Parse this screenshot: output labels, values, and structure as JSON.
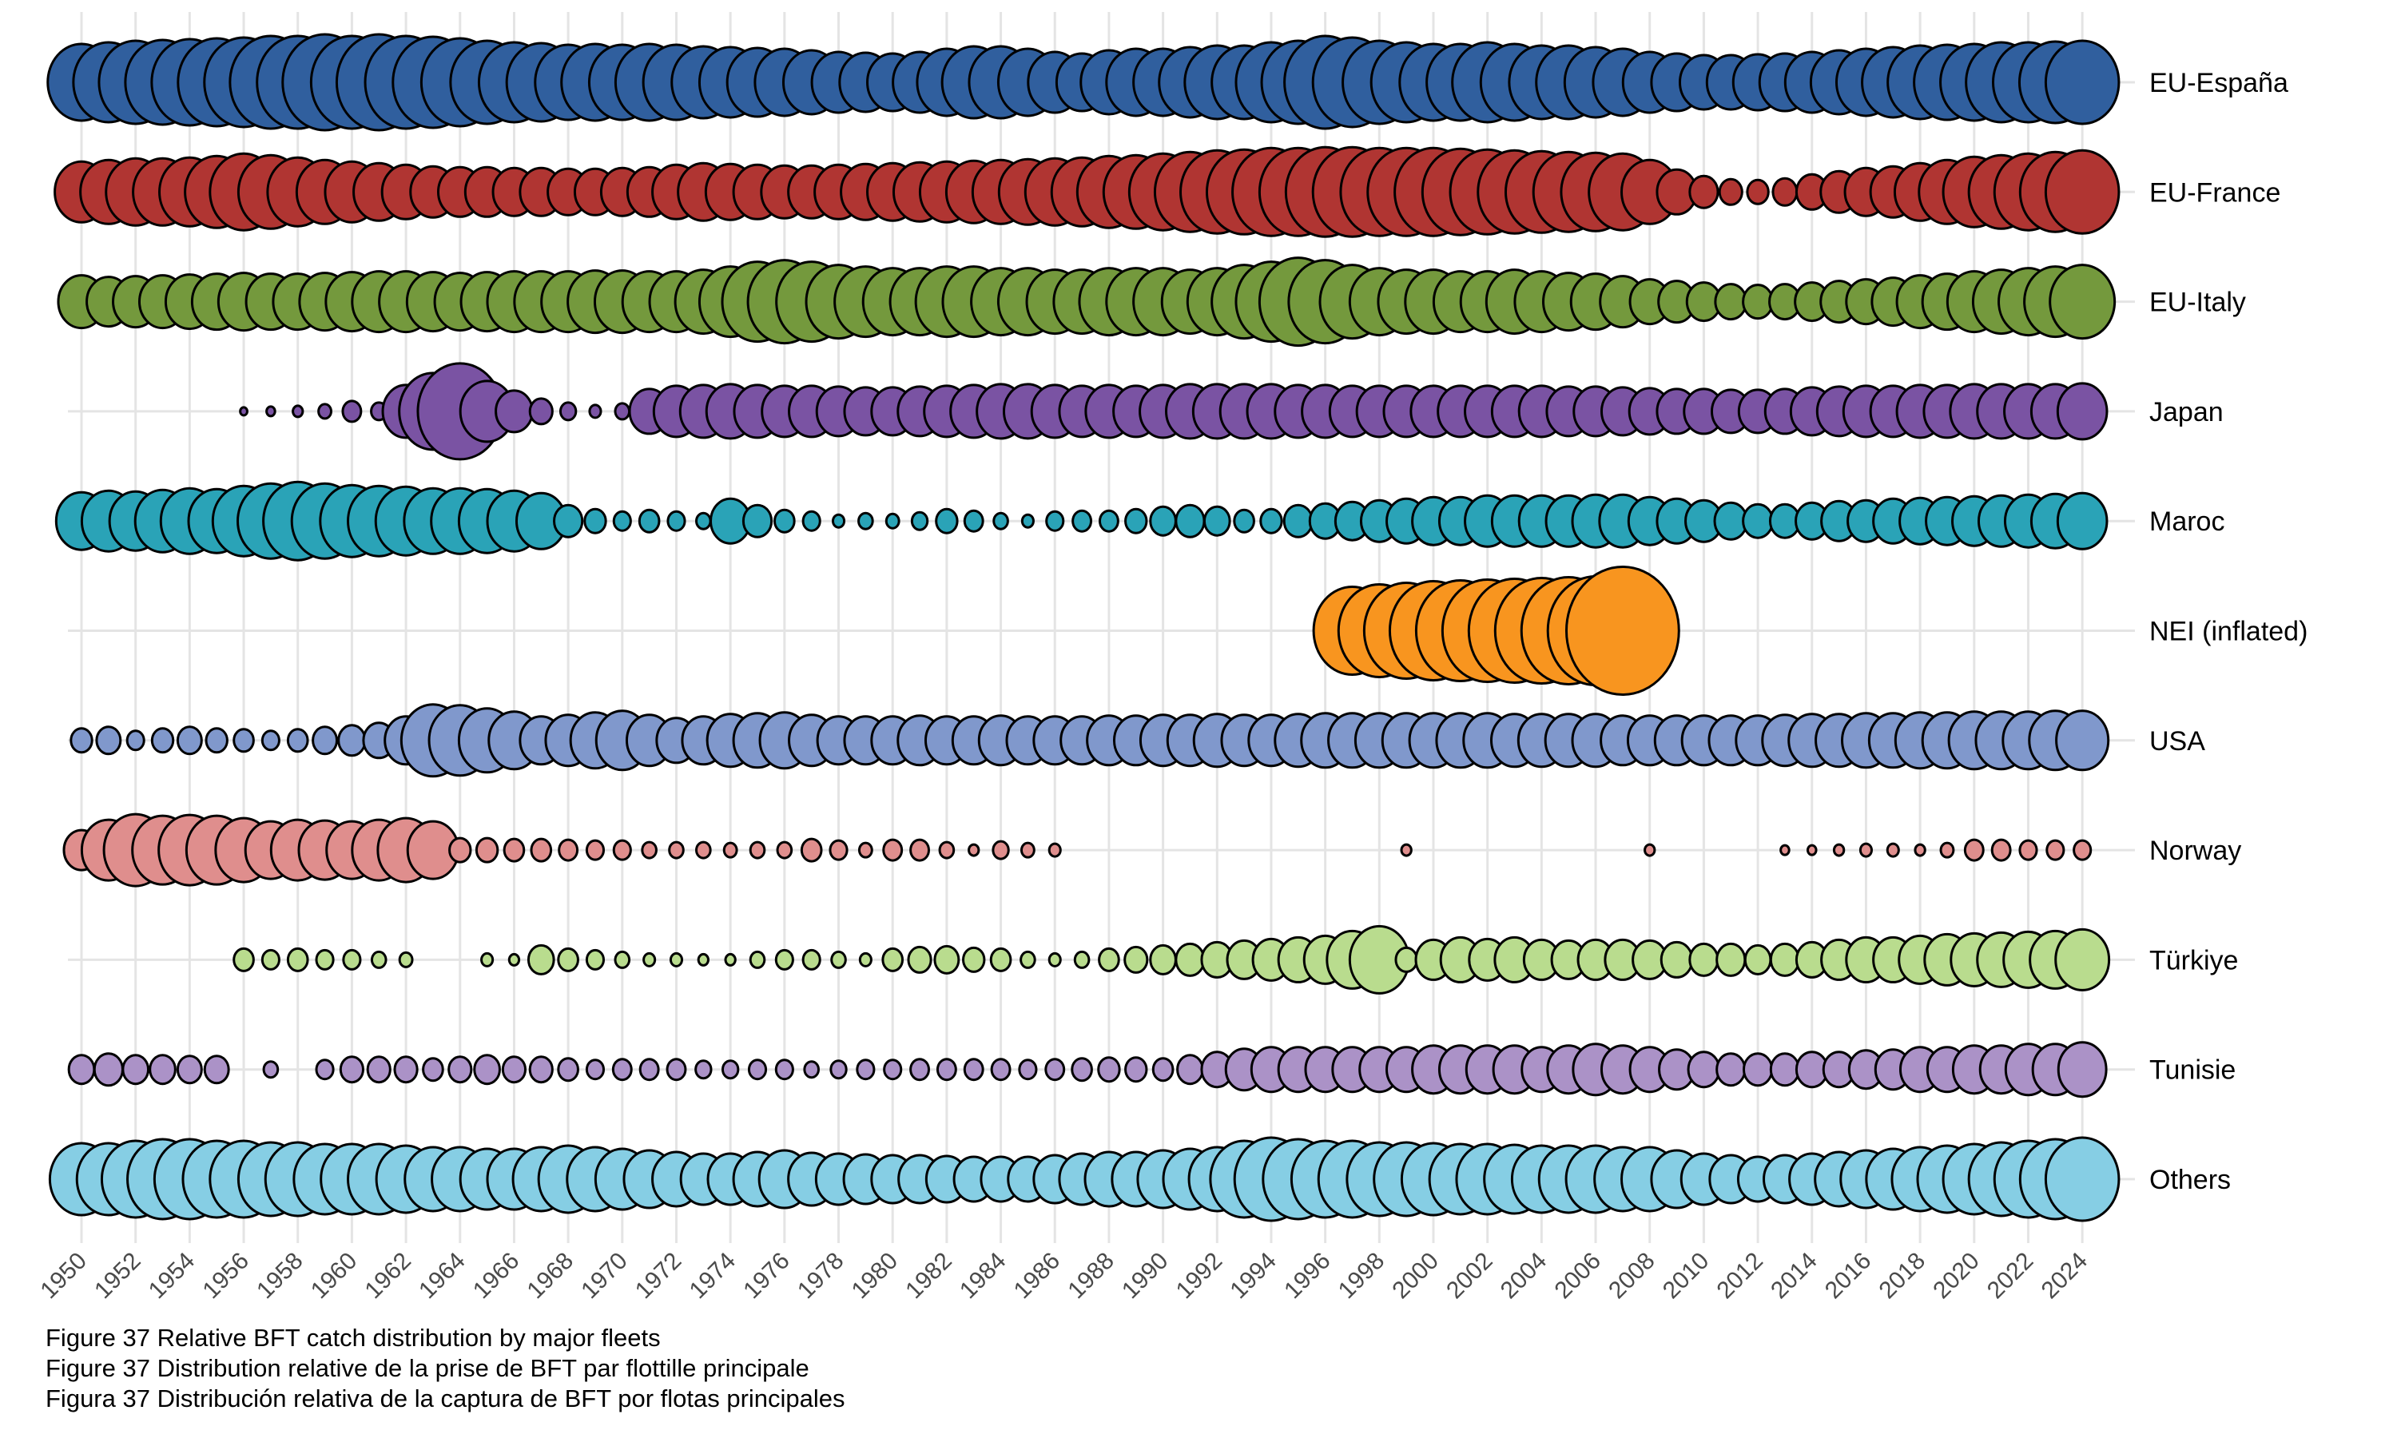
{
  "figure": {
    "captions": {
      "en": "Figure 37 Relative BFT catch distribution by major fleets",
      "fr": "Figure 37 Distribution relative de la prise de BFT par flottille principale",
      "es": "Figura 37 Distribución relativa de la captura de BFT por flotas principales"
    }
  },
  "colors": {
    "background": "#ffffff",
    "grid": "#e4e4e4",
    "bubble_stroke": "#000000",
    "tick_text": "#4a4a4a",
    "row_label_text": "#000000"
  },
  "chart_data": {
    "type": "bubble",
    "title": "Relative BFT catch distribution by major fleets",
    "xlabel": "",
    "ylabel": "",
    "grid": true,
    "legend": "none",
    "x": {
      "start": 1950,
      "end": 2024,
      "step": 1,
      "tick_step": 2,
      "ticks": [
        "1950",
        "1952",
        "1954",
        "1956",
        "1958",
        "1960",
        "1962",
        "1964",
        "1966",
        "1968",
        "1970",
        "1972",
        "1974",
        "1976",
        "1978",
        "1980",
        "1982",
        "1984",
        "1986",
        "1988",
        "1990",
        "1992",
        "1994",
        "1996",
        "1998",
        "2000",
        "2002",
        "2004",
        "2006",
        "2008",
        "2010",
        "2012",
        "2014",
        "2016",
        "2018",
        "2020",
        "2022",
        "2024"
      ]
    },
    "size_encoding": "bubble size = relative catch share per fleet and year; no size legend shown; values given as bubble radius in canvas px (3000x1800)",
    "fleets": [
      {
        "label": "EU-España",
        "color": "#305F9E",
        "radii": [
          48,
          50,
          52,
          53,
          54,
          55,
          56,
          58,
          58,
          60,
          58,
          60,
          58,
          57,
          55,
          52,
          50,
          49,
          47,
          48,
          47,
          48,
          47,
          45,
          44,
          43,
          42,
          40,
          38,
          37,
          36,
          38,
          42,
          45,
          45,
          42,
          38,
          36,
          40,
          42,
          42,
          44,
          46,
          46,
          50,
          52,
          58,
          56,
          52,
          50,
          48,
          48,
          50,
          48,
          46,
          46,
          44,
          42,
          38,
          36,
          34,
          34,
          35,
          36,
          38,
          40,
          42,
          44,
          46,
          47,
          48,
          50,
          50,
          51,
          52
        ]
      },
      {
        "label": "EU-France",
        "color": "#B03532",
        "radii": [
          38,
          40,
          42,
          42,
          43,
          45,
          48,
          46,
          43,
          40,
          38,
          36,
          34,
          32,
          31,
          31,
          30,
          30,
          29,
          29,
          30,
          31,
          34,
          36,
          35,
          34,
          33,
          33,
          34,
          35,
          36,
          37,
          38,
          39,
          40,
          41,
          42,
          43,
          45,
          46,
          48,
          50,
          52,
          53,
          55,
          55,
          56,
          56,
          55,
          55,
          55,
          54,
          53,
          52,
          51,
          50,
          49,
          48,
          40,
          28,
          20,
          16,
          15,
          17,
          22,
          26,
          30,
          32,
          36,
          40,
          44,
          46,
          48,
          50,
          52
        ]
      },
      {
        "label": "EU-Italy",
        "color": "#74993D",
        "radii": [
          33,
          31,
          32,
          33,
          34,
          35,
          36,
          35,
          35,
          36,
          37,
          38,
          38,
          37,
          36,
          37,
          38,
          38,
          38,
          39,
          39,
          38,
          38,
          40,
          44,
          50,
          52,
          50,
          46,
          44,
          42,
          42,
          44,
          44,
          42,
          42,
          40,
          40,
          42,
          42,
          42,
          40,
          42,
          46,
          50,
          55,
          52,
          46,
          42,
          40,
          40,
          38,
          38,
          40,
          38,
          36,
          35,
          32,
          28,
          26,
          24,
          22,
          21,
          22,
          24,
          26,
          28,
          30,
          33,
          35,
          38,
          40,
          42,
          44,
          46
        ]
      },
      {
        "label": "Japan",
        "color": "#7A53A3",
        "radii": [
          0,
          0,
          0,
          0,
          0,
          0,
          5,
          6,
          7,
          9,
          13,
          11,
          33,
          48,
          60,
          38,
          26,
          16,
          11,
          8,
          10,
          28,
          32,
          33,
          34,
          33,
          32,
          32,
          31,
          30,
          30,
          31,
          32,
          33,
          34,
          34,
          33,
          32,
          33,
          32,
          33,
          34,
          34,
          34,
          34,
          33,
          33,
          32,
          32,
          32,
          32,
          32,
          32,
          32,
          32,
          31,
          31,
          30,
          29,
          28,
          28,
          27,
          27,
          28,
          30,
          31,
          32,
          32,
          33,
          33,
          34,
          34,
          34,
          34,
          35
        ]
      },
      {
        "label": "Maroc",
        "color": "#2AA3B7",
        "radii": [
          36,
          38,
          37,
          39,
          41,
          40,
          44,
          47,
          49,
          47,
          45,
          44,
          43,
          41,
          41,
          40,
          38,
          35,
          20,
          15,
          12,
          14,
          12,
          10,
          28,
          20,
          14,
          12,
          8,
          10,
          9,
          11,
          15,
          13,
          10,
          8,
          12,
          13,
          13,
          15,
          18,
          20,
          18,
          14,
          15,
          20,
          22,
          24,
          26,
          28,
          30,
          30,
          32,
          32,
          32,
          32,
          33,
          33,
          30,
          28,
          26,
          23,
          21,
          21,
          23,
          25,
          26,
          28,
          29,
          30,
          31,
          32,
          33,
          34,
          35
        ]
      },
      {
        "label": "NEI (inflated)",
        "color": "#F8951F",
        "radii": [
          0,
          0,
          0,
          0,
          0,
          0,
          0,
          0,
          0,
          0,
          0,
          0,
          0,
          0,
          0,
          0,
          0,
          0,
          0,
          0,
          0,
          0,
          0,
          0,
          0,
          0,
          0,
          0,
          0,
          0,
          0,
          0,
          0,
          0,
          0,
          0,
          0,
          0,
          0,
          0,
          0,
          0,
          0,
          0,
          0,
          0,
          0,
          55,
          58,
          60,
          62,
          63,
          64,
          65,
          66,
          67,
          68,
          80,
          0,
          0,
          0,
          0,
          0,
          0,
          0,
          0,
          0,
          0,
          0,
          0,
          0,
          0,
          0,
          0,
          0
        ]
      },
      {
        "label": "USA",
        "color": "#8098CC",
        "radii": [
          15,
          17,
          12,
          15,
          17,
          15,
          14,
          12,
          14,
          17,
          19,
          22,
          30,
          45,
          44,
          40,
          36,
          30,
          32,
          35,
          37,
          32,
          28,
          30,
          33,
          34,
          35,
          32,
          30,
          30,
          30,
          31,
          30,
          30,
          31,
          30,
          30,
          30,
          31,
          31,
          32,
          32,
          33,
          32,
          32,
          33,
          34,
          34,
          34,
          34,
          34,
          34,
          34,
          33,
          33,
          33,
          33,
          31,
          31,
          31,
          31,
          31,
          31,
          32,
          33,
          33,
          34,
          34,
          35,
          35,
          36,
          36,
          36,
          37,
          37
        ]
      },
      {
        "label": "Norway",
        "color": "#DF8E8D",
        "radii": [
          25,
          38,
          45,
          43,
          44,
          43,
          40,
          36,
          38,
          37,
          36,
          38,
          40,
          36,
          15,
          15,
          14,
          14,
          13,
          12,
          12,
          10,
          10,
          10,
          9,
          10,
          10,
          14,
          12,
          9,
          13,
          13,
          10,
          7,
          11,
          9,
          8,
          0,
          0,
          0,
          0,
          0,
          0,
          0,
          0,
          0,
          0,
          0,
          0,
          7,
          0,
          0,
          0,
          0,
          0,
          0,
          0,
          0,
          7,
          0,
          0,
          0,
          0,
          6,
          6,
          7,
          8,
          8,
          7,
          9,
          13,
          13,
          12,
          12,
          12
        ]
      },
      {
        "label": "Türkiye",
        "color": "#B9DC8E",
        "radii": [
          0,
          0,
          0,
          0,
          0,
          0,
          14,
          12,
          14,
          12,
          12,
          10,
          9,
          0,
          0,
          8,
          7,
          18,
          14,
          12,
          10,
          8,
          8,
          7,
          7,
          10,
          12,
          12,
          10,
          8,
          14,
          16,
          17,
          15,
          14,
          10,
          8,
          10,
          14,
          16,
          18,
          20,
          22,
          24,
          26,
          28,
          30,
          36,
          42,
          15,
          25,
          28,
          26,
          28,
          25,
          24,
          25,
          25,
          24,
          22,
          20,
          20,
          18,
          20,
          22,
          25,
          28,
          28,
          30,
          32,
          33,
          34,
          35,
          36,
          38
        ]
      },
      {
        "label": "Tunisie",
        "color": "#AB92C7",
        "radii": [
          18,
          20,
          18,
          18,
          17,
          17,
          0,
          10,
          0,
          12,
          16,
          16,
          16,
          14,
          16,
          18,
          16,
          16,
          14,
          12,
          13,
          13,
          13,
          11,
          11,
          12,
          12,
          10,
          11,
          12,
          12,
          13,
          13,
          13,
          13,
          12,
          13,
          14,
          15,
          15,
          14,
          18,
          22,
          26,
          28,
          28,
          28,
          28,
          28,
          28,
          30,
          30,
          30,
          30,
          28,
          30,
          32,
          30,
          28,
          25,
          22,
          20,
          20,
          20,
          22,
          22,
          24,
          25,
          28,
          28,
          30,
          30,
          32,
          32,
          34
        ]
      },
      {
        "label": "Others",
        "color": "#86CEE4",
        "radii": [
          45,
          45,
          48,
          50,
          50,
          48,
          48,
          46,
          46,
          44,
          44,
          44,
          42,
          40,
          40,
          38,
          38,
          40,
          42,
          40,
          38,
          36,
          34,
          32,
          32,
          34,
          36,
          33,
          32,
          31,
          30,
          30,
          29,
          28,
          28,
          28,
          30,
          32,
          34,
          34,
          36,
          38,
          40,
          48,
          52,
          50,
          48,
          48,
          46,
          46,
          45,
          44,
          44,
          43,
          42,
          42,
          42,
          40,
          40,
          36,
          32,
          30,
          28,
          30,
          32,
          34,
          36,
          38,
          40,
          42,
          44,
          46,
          48,
          50,
          52
        ]
      }
    ]
  }
}
